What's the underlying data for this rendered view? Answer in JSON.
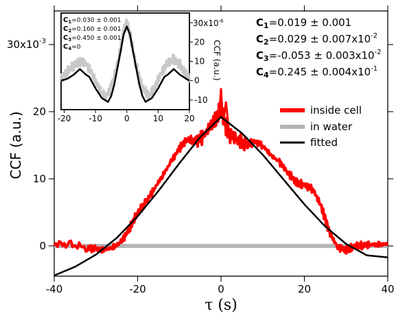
{
  "chart_data": [
    {
      "type": "line",
      "xlabel": "τ (s)",
      "ylabel": "CCF (a.u.)",
      "y_multiplier_label": "30x10",
      "y_multiplier_exp": "-3",
      "xlim": [
        -40,
        40
      ],
      "ylim": [
        -0.0045,
        0.035
      ],
      "x_ticks": [
        -40,
        -20,
        0,
        20,
        40
      ],
      "x_tick_labels": [
        "-40",
        "-20",
        "0",
        "20",
        "40"
      ],
      "y_ticks": [
        0,
        0.01,
        0.02
      ],
      "y_tick_labels": [
        "0",
        "10",
        "20"
      ],
      "legend_position": "right",
      "legend": [
        {
          "label": "inside cell",
          "color": "#ff0000"
        },
        {
          "label": "in water",
          "color": "#b5b5b5"
        },
        {
          "label": "fitted",
          "color": "#000000"
        }
      ],
      "params": [
        {
          "name": "C",
          "sub": "1",
          "value": "=0.019 ± 0.001",
          "exp": ""
        },
        {
          "name": "C",
          "sub": "2",
          "value": "=0.029 ± 0.007x10",
          "exp": "-2"
        },
        {
          "name": "C",
          "sub": "3",
          "value": "=-0.053 ± 0.003x10",
          "exp": "-2"
        },
        {
          "name": "C",
          "sub": "4",
          "value": "=0.245 ± 0.004x10",
          "exp": "-1"
        }
      ],
      "series": [
        {
          "name": "inside cell",
          "color": "#ff0000",
          "x": [
            -40,
            -36,
            -32,
            -30,
            -28,
            -26,
            -24,
            -22,
            -20,
            -18,
            -16,
            -14,
            -12,
            -10,
            -8,
            -6,
            -4,
            -2,
            -1,
            0,
            1,
            2,
            4,
            6,
            8,
            10,
            12,
            14,
            16,
            18,
            20,
            22,
            24,
            25,
            26,
            28,
            30,
            32,
            34,
            36,
            38,
            40
          ],
          "y": [
            0.0003,
            0.0002,
            -0.0003,
            -0.0005,
            -0.0006,
            -0.0002,
            0.0005,
            0.0025,
            0.005,
            0.0065,
            0.0085,
            0.0105,
            0.0125,
            0.0145,
            0.016,
            0.0155,
            0.0165,
            0.0185,
            0.019,
            0.021,
            0.018,
            0.0165,
            0.016,
            0.015,
            0.0155,
            0.015,
            0.0135,
            0.0125,
            0.011,
            0.0095,
            0.009,
            0.0085,
            0.006,
            0.004,
            0.002,
            -0.0002,
            -0.0006,
            -0.0001,
            0.0001,
            0.0002,
            0.0002,
            0.0003
          ]
        },
        {
          "name": "in water",
          "color": "#b5b5b5",
          "x": [
            -40,
            40
          ],
          "y": [
            0,
            0
          ]
        },
        {
          "name": "fitted",
          "color": "#000000",
          "function": "C4 + C1*exp(-|x|/C3inv) approx",
          "x": [
            -40,
            -35,
            -30,
            -25,
            -20,
            -15,
            -10,
            -5,
            0,
            5,
            10,
            15,
            20,
            25,
            30,
            35,
            40
          ],
          "y": [
            -0.0044,
            -0.0031,
            -0.0013,
            0.0012,
            0.0044,
            0.0082,
            0.0123,
            0.0162,
            0.0192,
            0.0168,
            0.0136,
            0.0099,
            0.0062,
            0.0029,
            0.0003,
            -0.0014,
            -0.0017
          ]
        }
      ]
    },
    {
      "type": "line",
      "inset": true,
      "ylabel": "CCF (a.u.)",
      "y_multiplier_label": "30x10",
      "y_multiplier_exp": "-6",
      "xlim": [
        -21,
        20
      ],
      "ylim": [
        -1.5e-05,
        3.5e-05
      ],
      "x_ticks": [
        -20,
        -10,
        0,
        10,
        20
      ],
      "x_tick_labels": [
        "-20",
        "-10",
        "0",
        "10",
        "20"
      ],
      "y_ticks": [
        -1e-05,
        0,
        1e-05,
        2e-05,
        3e-05
      ],
      "y_tick_labels": [
        "-10",
        "0",
        "10",
        "20",
        ""
      ],
      "params": [
        {
          "name": "C",
          "sub": "1",
          "value": "=0.030 ± 0.001"
        },
        {
          "name": "C",
          "sub": "2",
          "value": "=0.160 ± 0.001"
        },
        {
          "name": "C",
          "sub": "3",
          "value": "=0.450 ± 0.001"
        },
        {
          "name": "C",
          "sub": "4",
          "value": "=0"
        }
      ],
      "series": [
        {
          "name": "in water",
          "color": "#c8c8c8",
          "x": [
            -21,
            -19,
            -17,
            -15,
            -13,
            -11,
            -9,
            -7,
            -5,
            -3,
            -1,
            0,
            1,
            3,
            5,
            7,
            9,
            11,
            13,
            15,
            17,
            19,
            20
          ],
          "y": [
            1e-06,
            5e-06,
            8e-06,
            1e-05,
            9e-06,
            3e-06,
            -4e-06,
            -9e-06,
            -4e-06,
            8e-06,
            2.6e-05,
            3e-05,
            2.4e-05,
            8e-06,
            -4e-06,
            -8e-06,
            -3e-06,
            4e-06,
            9e-06,
            1.1e-05,
            8e-06,
            3e-06,
            1e-06
          ]
        },
        {
          "name": "fitted",
          "color": "#000000",
          "x": [
            -21,
            -19,
            -17,
            -15,
            -13,
            -12,
            -10,
            -8,
            -6,
            -5,
            -4,
            -2,
            -1,
            0,
            1,
            2,
            4,
            5,
            6,
            8,
            10,
            12,
            13,
            15,
            17,
            19,
            20
          ],
          "y": [
            0,
            1e-06,
            3e-06,
            6e-06,
            3e-06,
            2e-06,
            -4e-06,
            -9e-06,
            -1.1e-05,
            -8e-06,
            -2e-06,
            1.5e-05,
            2.4e-05,
            2.8e-05,
            2.4e-05,
            1.5e-05,
            -2e-06,
            -8e-06,
            -1.1e-05,
            -9e-06,
            -4e-06,
            2e-06,
            3e-06,
            6e-06,
            3e-06,
            1e-06,
            0
          ]
        }
      ]
    }
  ]
}
